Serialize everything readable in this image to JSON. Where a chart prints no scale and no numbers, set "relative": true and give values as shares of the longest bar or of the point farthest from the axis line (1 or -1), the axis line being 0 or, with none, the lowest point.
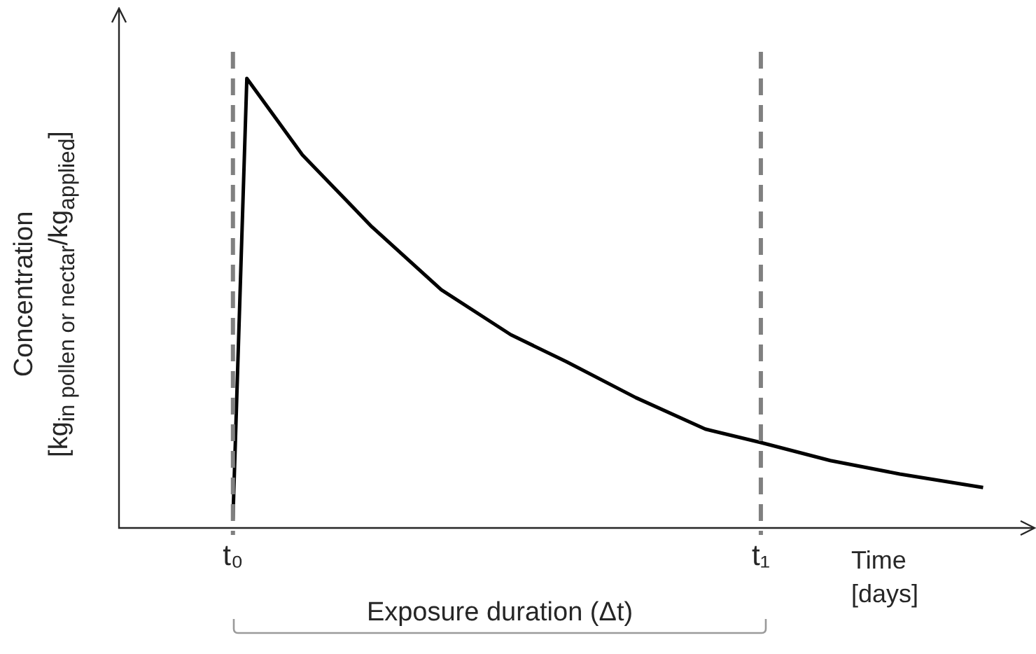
{
  "chart_data": {
    "type": "line",
    "relative": true,
    "xlabel": "Time\n[days]",
    "ylabel": "Concentration\n[kg$_{in pollen or nectar}$/kg$_{applied}$]",
    "categories": [
      null,
      null,
      null,
      null,
      null,
      null,
      null,
      null,
      "t₀",
      null,
      null,
      null,
      null,
      null,
      null,
      null,
      null,
      null,
      null,
      null,
      null,
      null,
      null,
      null,
      null,
      null,
      null,
      null,
      null,
      null,
      null,
      null,
      null,
      null,
      null,
      null,
      null,
      null,
      null,
      null,
      null,
      null,
      null,
      null,
      null,
      null,
      "t₁",
      null,
      null,
      null,
      null,
      null,
      null,
      null,
      null,
      null,
      null,
      null,
      null,
      null,
      null,
      null,
      null,
      null,
      null,
      null
    ],
    "series": [
      {
        "color": "#000000",
        "values": [
          null,
          null,
          null,
          null,
          null,
          null,
          null,
          null,
          0.02,
          1.0,
          null,
          null,
          null,
          0.83,
          null,
          null,
          null,
          null,
          0.67,
          null,
          null,
          null,
          null,
          0.53,
          null,
          null,
          null,
          null,
          0.43,
          null,
          null,
          null,
          0.37,
          null,
          null,
          null,
          null,
          0.29,
          null,
          null,
          null,
          null,
          0.22,
          null,
          null,
          null,
          0.19,
          null,
          null,
          null,
          null,
          0.15,
          null,
          null,
          null,
          null,
          0.12,
          null,
          null,
          null,
          null,
          null,
          0.09,
          null,
          null,
          null
        ]
      }
    ],
    "ref_lines": [
      {
        "axis": "x",
        "value": "t₀",
        "color": "#808080",
        "line_style": "dashed"
      },
      {
        "axis": "x",
        "value": "t₁",
        "color": "#808080",
        "line_style": "dashed"
      }
    ],
    "annotations": [
      "Exposure duration (Δt)"
    ],
    "grid": false
  }
}
